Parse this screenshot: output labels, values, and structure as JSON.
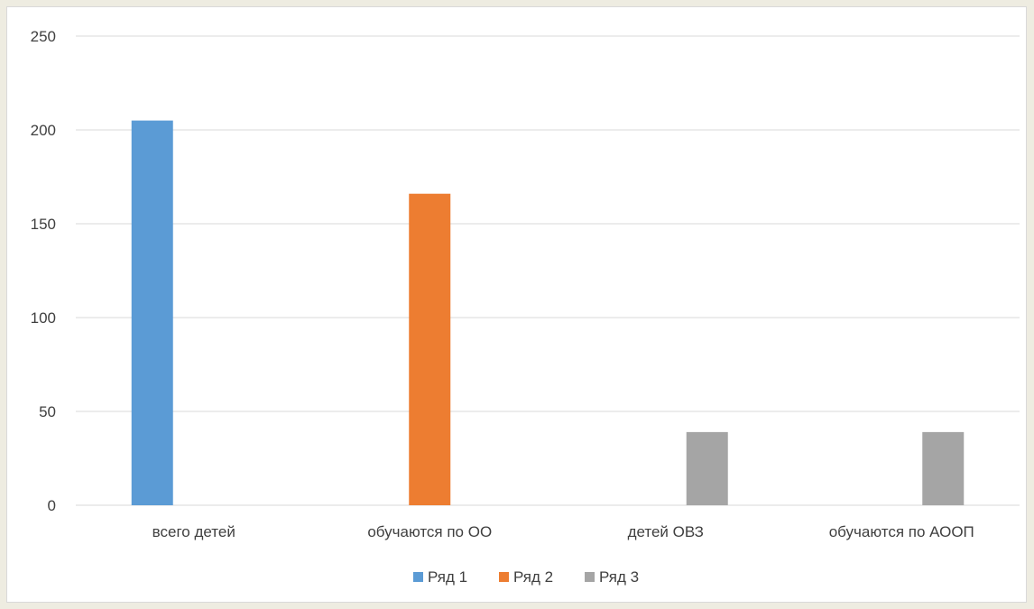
{
  "chart_data": {
    "type": "bar",
    "categories": [
      "всего детей",
      "обучаются по ОО",
      "детей ОВЗ",
      "обучаются по АООП"
    ],
    "series": [
      {
        "name": "Ряд 1",
        "color": "#5b9bd5",
        "values": [
          205,
          0,
          0,
          0
        ]
      },
      {
        "name": "Ряд 2",
        "color": "#ed7d31",
        "values": [
          0,
          166,
          0,
          0
        ]
      },
      {
        "name": "Ряд 3",
        "color": "#a5a5a5",
        "values": [
          0,
          0,
          39,
          39
        ]
      }
    ],
    "y_ticks": [
      "0",
      "50",
      "100",
      "150",
      "200",
      "250"
    ],
    "ylim": [
      0,
      250
    ],
    "grid": true,
    "legend_position": "bottom",
    "gridline_color": "#d9d9d9"
  }
}
